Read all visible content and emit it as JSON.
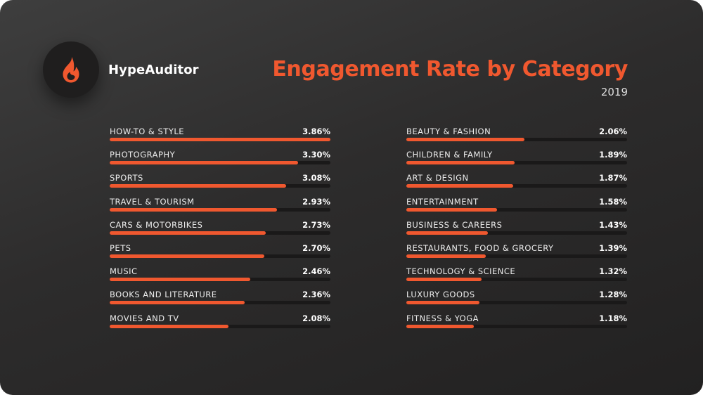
{
  "brand": {
    "name": "HypeAuditor",
    "icon": "flame-icon",
    "accent": "#f0582f"
  },
  "chart_data": {
    "type": "bar",
    "orientation": "horizontal",
    "title": "Engagement Rate by Category",
    "subtitle": "2019",
    "unit": "%",
    "scale_max": 3.86,
    "bar_color": "#f0582f",
    "track_color": "#1a1919",
    "columns": [
      {
        "items": [
          {
            "label": "HOW-TO & STYLE",
            "value": 3.86,
            "display": "3.86%"
          },
          {
            "label": "PHOTOGRAPHY",
            "value": 3.3,
            "display": "3.30%"
          },
          {
            "label": "SPORTS",
            "value": 3.08,
            "display": "3.08%"
          },
          {
            "label": "TRAVEL & TOURISM",
            "value": 2.93,
            "display": "2.93%"
          },
          {
            "label": "CARS & MOTORBIKES",
            "value": 2.73,
            "display": "2.73%"
          },
          {
            "label": "PETS",
            "value": 2.7,
            "display": "2.70%"
          },
          {
            "label": "MUSIC",
            "value": 2.46,
            "display": "2.46%"
          },
          {
            "label": "BOOKS AND LITERATURE",
            "value": 2.36,
            "display": "2.36%"
          },
          {
            "label": "MOVIES AND TV",
            "value": 2.08,
            "display": "2.08%"
          }
        ]
      },
      {
        "items": [
          {
            "label": "BEAUTY & FASHION",
            "value": 2.06,
            "display": "2.06%"
          },
          {
            "label": "CHILDREN & FAMILY",
            "value": 1.89,
            "display": "1.89%"
          },
          {
            "label": "ART & DESIGN",
            "value": 1.87,
            "display": "1.87%"
          },
          {
            "label": "ENTERTAINMENT",
            "value": 1.58,
            "display": "1.58%"
          },
          {
            "label": "BUSINESS & CAREERS",
            "value": 1.43,
            "display": "1.43%"
          },
          {
            "label": "RESTAURANTS, FOOD & GROCERY",
            "value": 1.39,
            "display": "1.39%"
          },
          {
            "label": "TECHNOLOGY & SCIENCE",
            "value": 1.32,
            "display": "1.32%"
          },
          {
            "label": "LUXURY GOODS",
            "value": 1.28,
            "display": "1.28%"
          },
          {
            "label": "FITNESS & YOGA",
            "value": 1.18,
            "display": "1.18%"
          }
        ]
      }
    ]
  }
}
